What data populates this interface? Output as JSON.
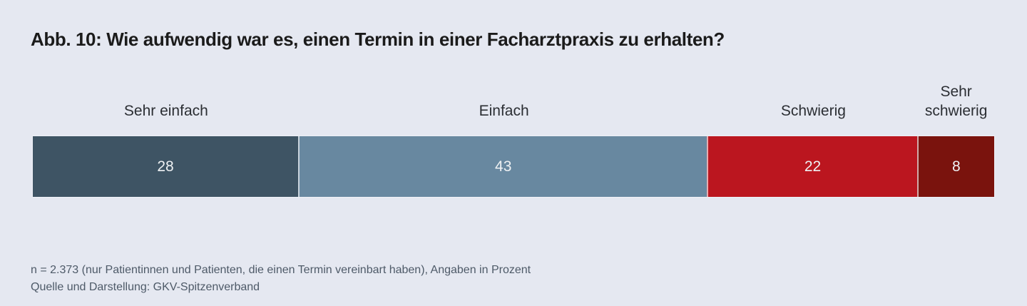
{
  "title": "Abb. 10: Wie aufwendig war es, einen Termin in einer Facharztpraxis zu erhalten?",
  "chart_data": {
    "type": "bar",
    "subtype": "horizontal-stacked-100",
    "title": "Abb. 10: Wie aufwendig war es, einen Termin in einer Facharztpraxis zu erhalten?",
    "categories": [
      "Sehr einfach",
      "Einfach",
      "Schwierig",
      "Sehr schwierig"
    ],
    "values": [
      28,
      43,
      22,
      8
    ],
    "unit": "Prozent",
    "colors": [
      "#3e5464",
      "#6888a0",
      "#bb161f",
      "#7a130d"
    ],
    "value_label_color": "#eef1f3",
    "background_color": "#e5e8f1",
    "legend_position": "labels-above-segments",
    "grid": false
  },
  "footer": {
    "note": "n = 2.373 (nur Patientinnen und Patienten, die einen Termin vereinbart haben), Angaben in Prozent",
    "source": "Quelle und Darstellung: GKV-Spitzenverband"
  }
}
